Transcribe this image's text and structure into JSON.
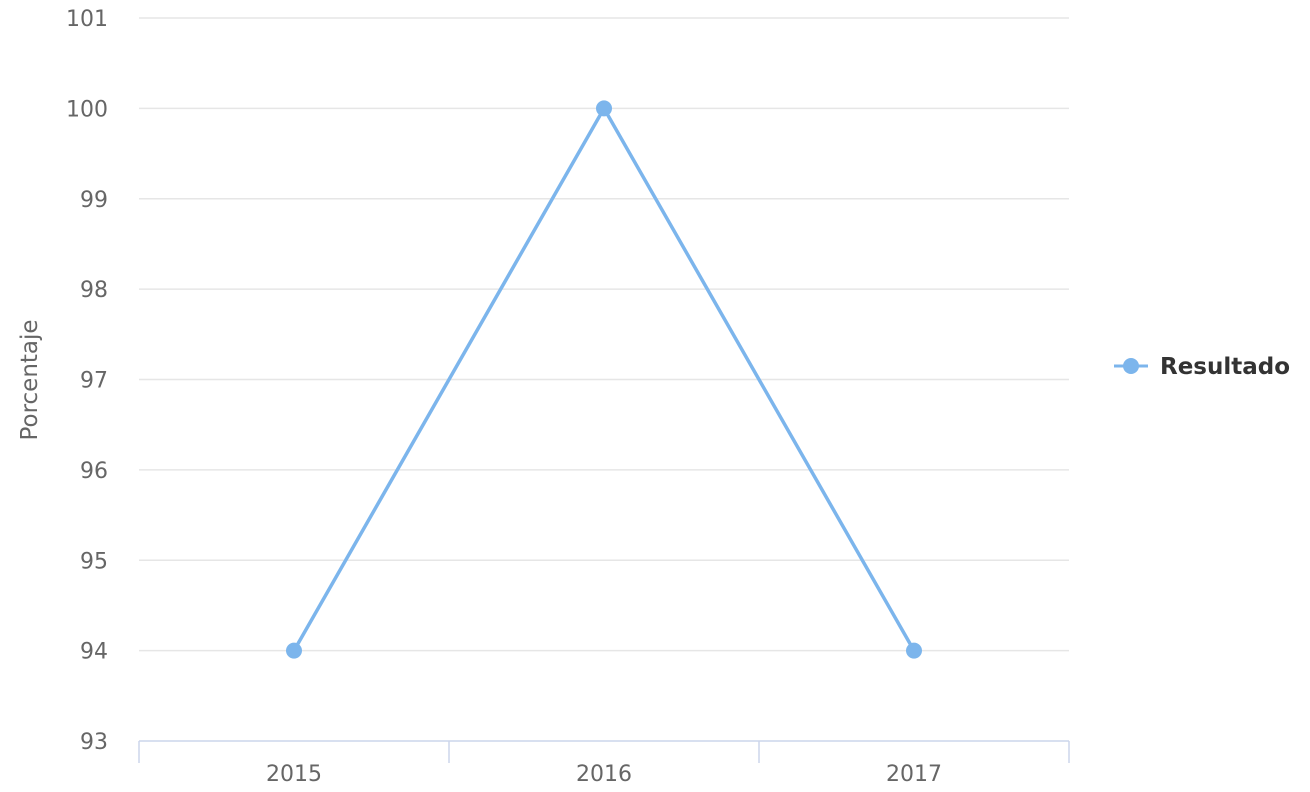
{
  "chart_data": {
    "type": "line",
    "categories": [
      "2015",
      "2016",
      "2017"
    ],
    "series": [
      {
        "name": "Resultado",
        "values": [
          94,
          100,
          94
        ],
        "color": "#7cb5ec"
      }
    ],
    "ylabel": "Porcentaje",
    "xlabel": "",
    "ylim": [
      93,
      101
    ],
    "yticks": [
      "93",
      "94",
      "95",
      "96",
      "97",
      "98",
      "99",
      "100",
      "101"
    ],
    "grid": true,
    "legend_position": "right"
  }
}
